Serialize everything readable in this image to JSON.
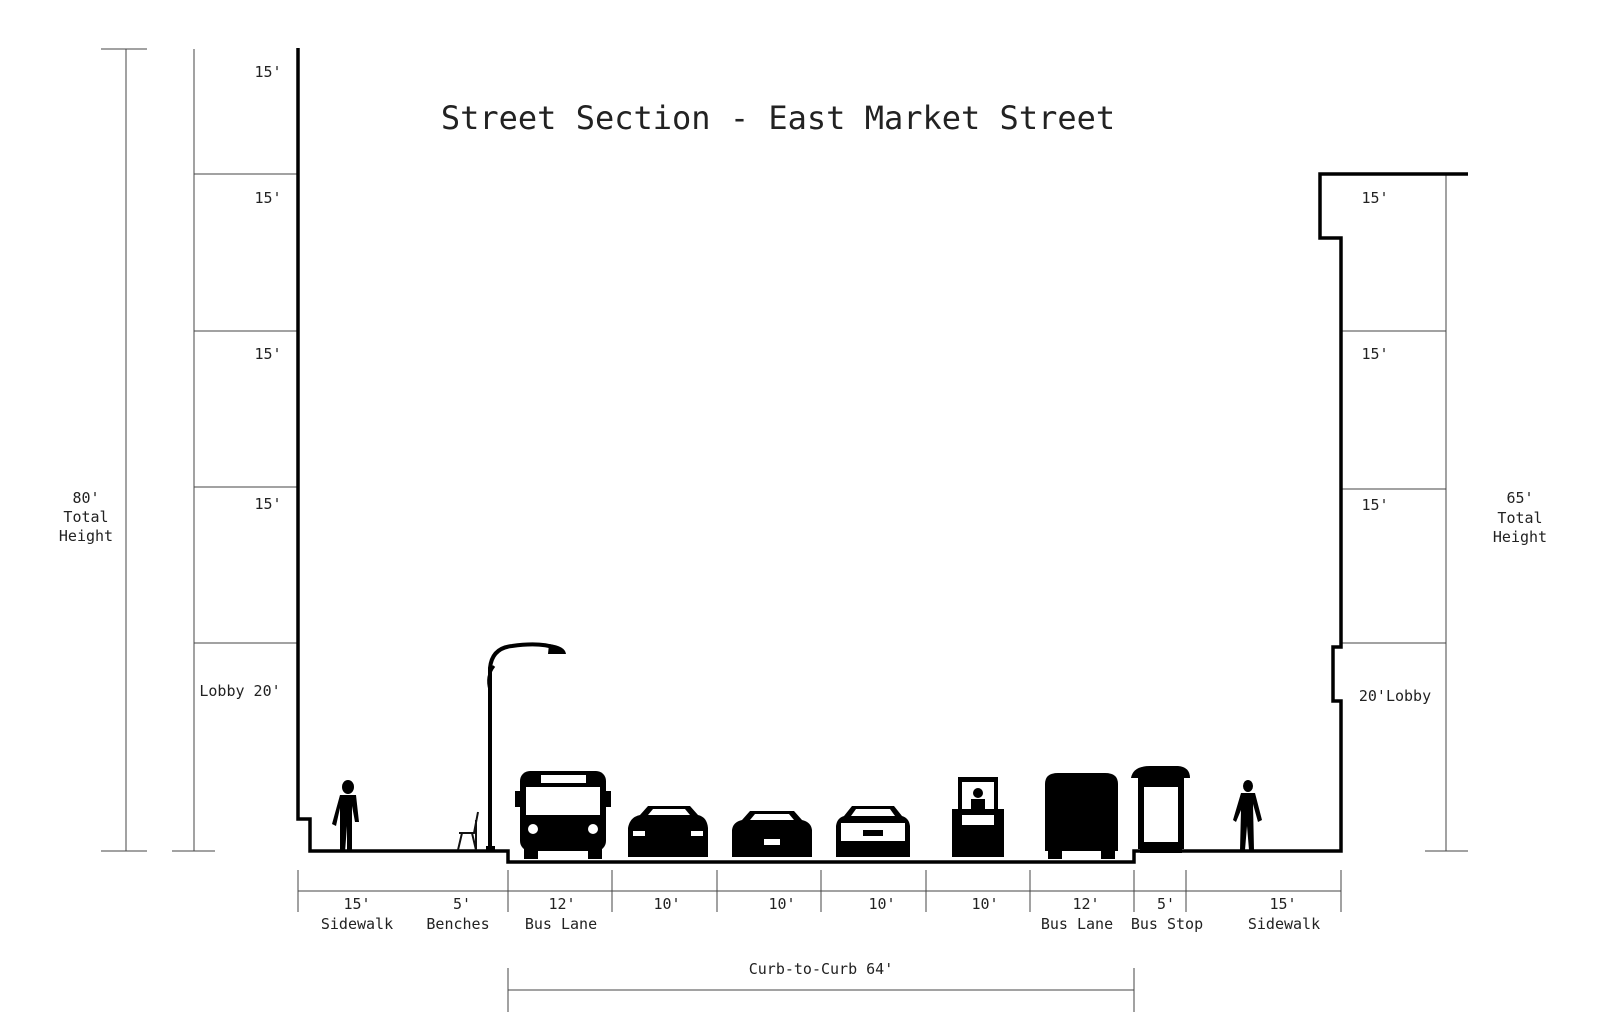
{
  "title": "Street Section - East Market Street",
  "left_building": {
    "total_height": [
      "80'",
      "Total",
      "Height"
    ],
    "floors": [
      "15'",
      "15'",
      "15'",
      "15'"
    ],
    "lobby": "Lobby 20'"
  },
  "right_building": {
    "total_height": [
      "65'",
      "Total",
      "Height"
    ],
    "floors": [
      "15'",
      "15'",
      "15'"
    ],
    "lobby": "20'Lobby"
  },
  "segments": [
    {
      "width": "15'",
      "name": "Sidewalk"
    },
    {
      "width": "5'",
      "name": "Benches"
    },
    {
      "width": "12'",
      "name": "Bus Lane"
    },
    {
      "width": "10'",
      "name": ""
    },
    {
      "width": "10'",
      "name": ""
    },
    {
      "width": "10'",
      "name": ""
    },
    {
      "width": "10'",
      "name": ""
    },
    {
      "width": "12'",
      "name": "Bus Lane"
    },
    {
      "width": "5'",
      "name": "Bus Stop"
    },
    {
      "width": "15'",
      "name": "Sidewalk"
    }
  ],
  "curb_to_curb": "Curb-to-Curb 64'"
}
